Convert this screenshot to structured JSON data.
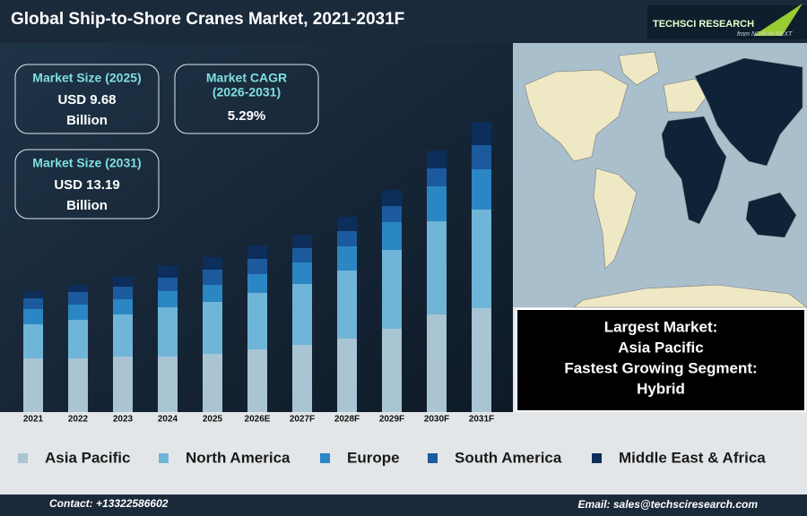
{
  "chart_data": {
    "type": "stacked_bar",
    "title": "Global Ship-to-Shore Cranes Market, 2021-2031F",
    "categories": [
      "2021",
      "2022",
      "2023",
      "2024",
      "2025",
      "2026E",
      "2027F",
      "2028F",
      "2029F",
      "2030F",
      "2031F"
    ],
    "series": [
      {
        "name": "Asia Pacific",
        "color": "#a9c4d3",
        "values": [
          60,
          60,
          62,
          62,
          65,
          70,
          75,
          82,
          93,
          109,
          116
        ]
      },
      {
        "name": "North America",
        "color": "#6fb5d8",
        "values": [
          38,
          43,
          47,
          55,
          58,
          63,
          68,
          76,
          88,
          104,
          110
        ]
      },
      {
        "name": "Europe",
        "color": "#2b86c4",
        "values": [
          17,
          17,
          17,
          18,
          19,
          21,
          24,
          27,
          31,
          39,
          45
        ]
      },
      {
        "name": "South America",
        "color": "#1c5a9e",
        "values": [
          12,
          14,
          14,
          15,
          17,
          17,
          16,
          17,
          18,
          20,
          27
        ]
      },
      {
        "name": "Middle East & Africa",
        "color": "#0d2d5a",
        "values": [
          8,
          8,
          11,
          13,
          14,
          15,
          15,
          16,
          18,
          20,
          26
        ]
      }
    ],
    "ylim": [
      0,
      340
    ],
    "grid": false,
    "legend": "bottom"
  },
  "kpis": [
    {
      "label": "Market Size (2025)",
      "value": "USD 9.68",
      "unit": "Billion"
    },
    {
      "label": "Market CAGR",
      "sublabel": "(2026-2031)",
      "value": "5.29%"
    },
    {
      "label": "Market Size (2031)",
      "value": "USD 13.19",
      "unit": "Billion"
    }
  ],
  "highlights": [
    "Largest Market:",
    "Asia Pacific",
    "Fastest Growing Segment:",
    "Hybrid"
  ],
  "logo": {
    "name": "TECHSCI RESEARCH",
    "tagline": "from NOW to NEXT"
  },
  "footer": {
    "contact": "Contact: +13322586602",
    "email": "Email: sales@techsciresearch.com"
  }
}
